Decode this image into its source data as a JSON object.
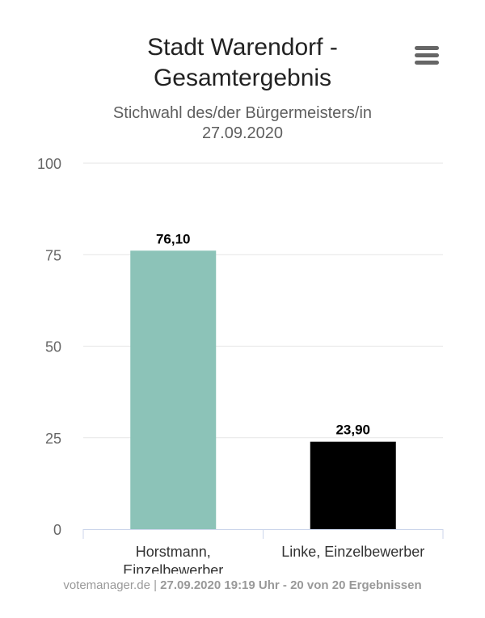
{
  "chart_data": {
    "type": "bar",
    "title": [
      "Stadt Warendorf -",
      "Gesamtergebnis"
    ],
    "subtitle": [
      "Stichwahl des/der Bürgermeisters/in",
      "27.09.2020"
    ],
    "categories": [
      [
        "Horstmann,",
        "Einzelbewerber"
      ],
      [
        "Linke, Einzelbewerber"
      ]
    ],
    "values": [
      76.1,
      23.9
    ],
    "data_labels": [
      "76,10",
      "23,90"
    ],
    "bar_colors": [
      "#8cc3b8",
      "#000000"
    ],
    "ylim": [
      0,
      100
    ],
    "y_ticks": [
      0,
      25,
      50,
      75,
      100
    ],
    "grid": true,
    "legend": "none"
  },
  "menu": {
    "icon": "hamburger-menu-icon"
  },
  "credits": {
    "source": "votemanager.de",
    "separator": " | ",
    "detail": "27.09.2020 19:19 Uhr - 20 von 20 Ergebnissen"
  }
}
